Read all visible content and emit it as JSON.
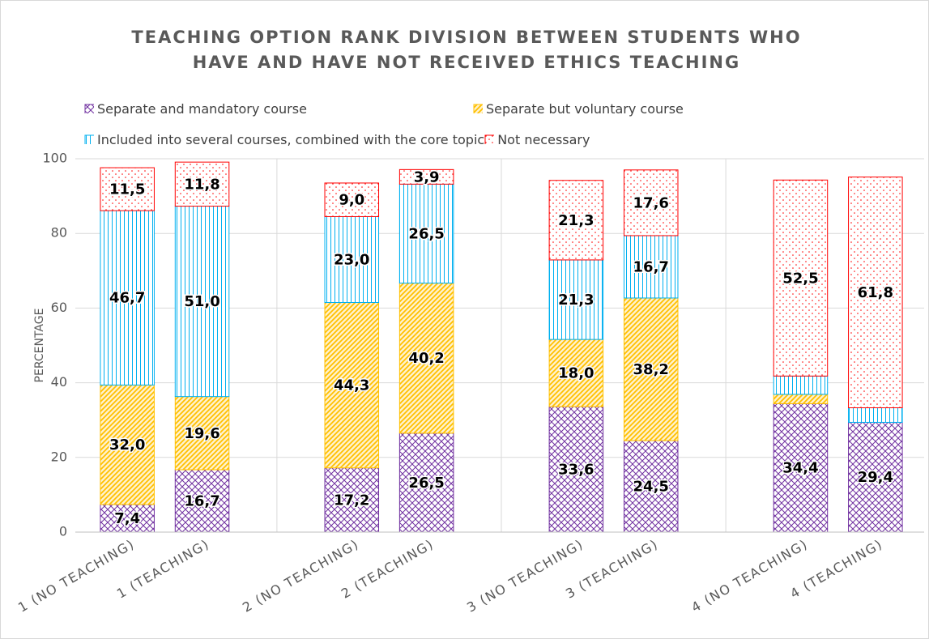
{
  "chart_data": {
    "type": "bar",
    "stacked": true,
    "title": "TEACHING OPTION RANK DIVISION BETWEEN STUDENTS WHO HAVE AND HAVE NOT RECEIVED ETHICS TEACHING",
    "y_label": "PERCENTAGE",
    "categories": [
      "1 (NO TEACHING)",
      "1 (TEACHING)",
      null,
      "2 (NO TEACHING)",
      "2 (TEACHING)",
      null,
      "3 (NO TEACHING)",
      "3 (TEACHING)",
      null,
      "4 (NO TEACHING)",
      "4 (TEACHING)"
    ],
    "series": [
      {
        "name": "Separate and mandatory course",
        "color": "#7030a0",
        "pattern": "crosshatch",
        "values": [
          7.4,
          16.7,
          null,
          17.2,
          26.5,
          null,
          33.6,
          24.5,
          null,
          34.4,
          29.4
        ],
        "value_labels": [
          "7,4",
          "16,7",
          null,
          "17,2",
          "26,5",
          null,
          "33,6",
          "24,5",
          null,
          "34,4",
          "29,4"
        ]
      },
      {
        "name": "Separate but voluntary course",
        "color": "#ffc000",
        "pattern": "diagonal",
        "values": [
          32.0,
          19.6,
          null,
          44.3,
          40.2,
          null,
          18.0,
          38.2,
          null,
          2.5,
          0
        ],
        "value_labels": [
          "32,0",
          "19,6",
          null,
          "44,3",
          "40,2",
          null,
          "18,0",
          "38,2",
          null,
          null,
          null
        ]
      },
      {
        "name": "Included into several courses, combined with the core topic",
        "color": "#00b0f0",
        "pattern": "vertical",
        "values": [
          46.7,
          51.0,
          null,
          23.0,
          26.5,
          null,
          21.3,
          16.7,
          null,
          4.9,
          3.9
        ],
        "value_labels": [
          "46,7",
          "51,0",
          null,
          "23,0",
          "26,5",
          null,
          "21,3",
          "16,7",
          null,
          null,
          null
        ]
      },
      {
        "name": "Not necessary",
        "color": "#ff0000",
        "pattern": "dots",
        "values": [
          11.5,
          11.8,
          null,
          9.0,
          3.9,
          null,
          21.3,
          17.6,
          null,
          52.5,
          61.8
        ],
        "value_labels": [
          "11,5",
          "11,8",
          null,
          "9,0",
          "3,9",
          null,
          "21,3",
          "17,6",
          null,
          "52,5",
          "61,8"
        ]
      }
    ],
    "ylim": [
      0,
      100
    ],
    "yticks": [
      0,
      20,
      40,
      60,
      80,
      100
    ],
    "grid": true
  }
}
